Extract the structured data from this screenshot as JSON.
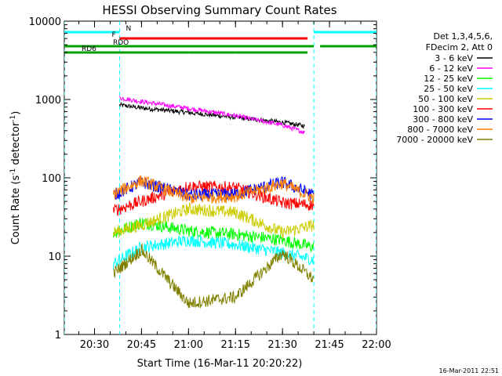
{
  "chart_data": {
    "type": "line",
    "title": "HESSI Observing Summary Count Rates",
    "xlabel": "Start Time (16-Mar-11 20:20:22)",
    "ylabel_main": "Count Rate (s",
    "ylabel_sup1": "-1",
    "ylabel_mid": " detector",
    "ylabel_sup2": "-1",
    "ylabel_end": ")",
    "footer_timestamp": "16-Mar-2011 22:51",
    "x_ticks": [
      "20:30",
      "20:45",
      "21:00",
      "21:15",
      "21:30",
      "21:45",
      "22:00"
    ],
    "y_ticks": [
      "1",
      "10",
      "100",
      "1000",
      "10000"
    ],
    "y_scale": "log",
    "ylim": [
      1,
      10000
    ],
    "xlim": [
      "20:20:22",
      "22:00"
    ],
    "legend_placement": "right",
    "legend_header": [
      "Det 1,3,4,5,6,",
      "FDecim 2, Att 0"
    ],
    "flags": [
      {
        "label": "N",
        "color": "#00ffff",
        "segments": [
          [
            "20:20:22",
            "20:38"
          ],
          [
            "21:40",
            "22:00"
          ]
        ]
      },
      {
        "label": "F",
        "color": "#ff0000",
        "segments": [
          [
            "20:38",
            "21:38"
          ]
        ]
      },
      {
        "label": "RDO",
        "color": "#00a000",
        "segments": [
          [
            "20:20:22",
            "21:40"
          ],
          [
            "21:42",
            "22:00"
          ]
        ]
      },
      {
        "label": "RD6",
        "color": "#00a000",
        "segments": [
          [
            "20:20:22",
            "21:00"
          ],
          [
            "21:00",
            "21:15"
          ],
          [
            "21:15",
            "21:38"
          ]
        ]
      }
    ],
    "series": [
      {
        "name": "3 - 6 keV",
        "color": "#000000",
        "x": [
          "20:38",
          "20:45",
          "21:00",
          "21:15",
          "21:30",
          "21:37"
        ],
        "values": [
          850,
          780,
          680,
          590,
          510,
          460
        ]
      },
      {
        "name": "6 - 12 keV",
        "color": "#ff00ff",
        "x": [
          "20:38",
          "20:45",
          "21:00",
          "21:15",
          "21:30",
          "21:37"
        ],
        "values": [
          1050,
          940,
          770,
          620,
          470,
          380
        ]
      },
      {
        "name": "12 - 25 keV",
        "color": "#00ff00",
        "x": [
          "20:36",
          "20:45",
          "21:00",
          "21:15",
          "21:30",
          "21:40"
        ],
        "values": [
          20,
          27,
          21,
          19,
          16,
          13
        ]
      },
      {
        "name": "25 - 50 keV",
        "color": "#00ffff",
        "x": [
          "20:36",
          "20:45",
          "21:00",
          "21:15",
          "21:30",
          "21:40"
        ],
        "values": [
          8,
          13,
          16,
          14,
          11,
          9
        ]
      },
      {
        "name": "50 - 100 keV",
        "color": "#cccc00",
        "x": [
          "20:36",
          "20:45",
          "21:00",
          "21:15",
          "21:30",
          "21:40"
        ],
        "values": [
          20,
          25,
          40,
          36,
          20,
          25
        ]
      },
      {
        "name": "100 - 300 keV",
        "color": "#ff0000",
        "x": [
          "20:36",
          "20:45",
          "21:00",
          "21:15",
          "21:30",
          "21:40"
        ],
        "values": [
          38,
          50,
          78,
          75,
          48,
          45
        ]
      },
      {
        "name": "300 - 800 keV",
        "color": "#0000ff",
        "x": [
          "20:36",
          "20:45",
          "21:00",
          "21:15",
          "21:30",
          "21:40"
        ],
        "values": [
          60,
          88,
          60,
          62,
          88,
          60
        ]
      },
      {
        "name": "800 - 7000 keV",
        "color": "#ff8000",
        "x": [
          "20:36",
          "20:45",
          "21:00",
          "21:15",
          "21:30",
          "21:40"
        ],
        "values": [
          62,
          92,
          55,
          58,
          85,
          55
        ]
      },
      {
        "name": "7000 - 20000 keV",
        "color": "#808000",
        "x": [
          "20:36",
          "20:45",
          "21:00",
          "21:15",
          "21:30",
          "21:40"
        ],
        "values": [
          6,
          12,
          2.5,
          3,
          11,
          5
        ]
      }
    ]
  }
}
